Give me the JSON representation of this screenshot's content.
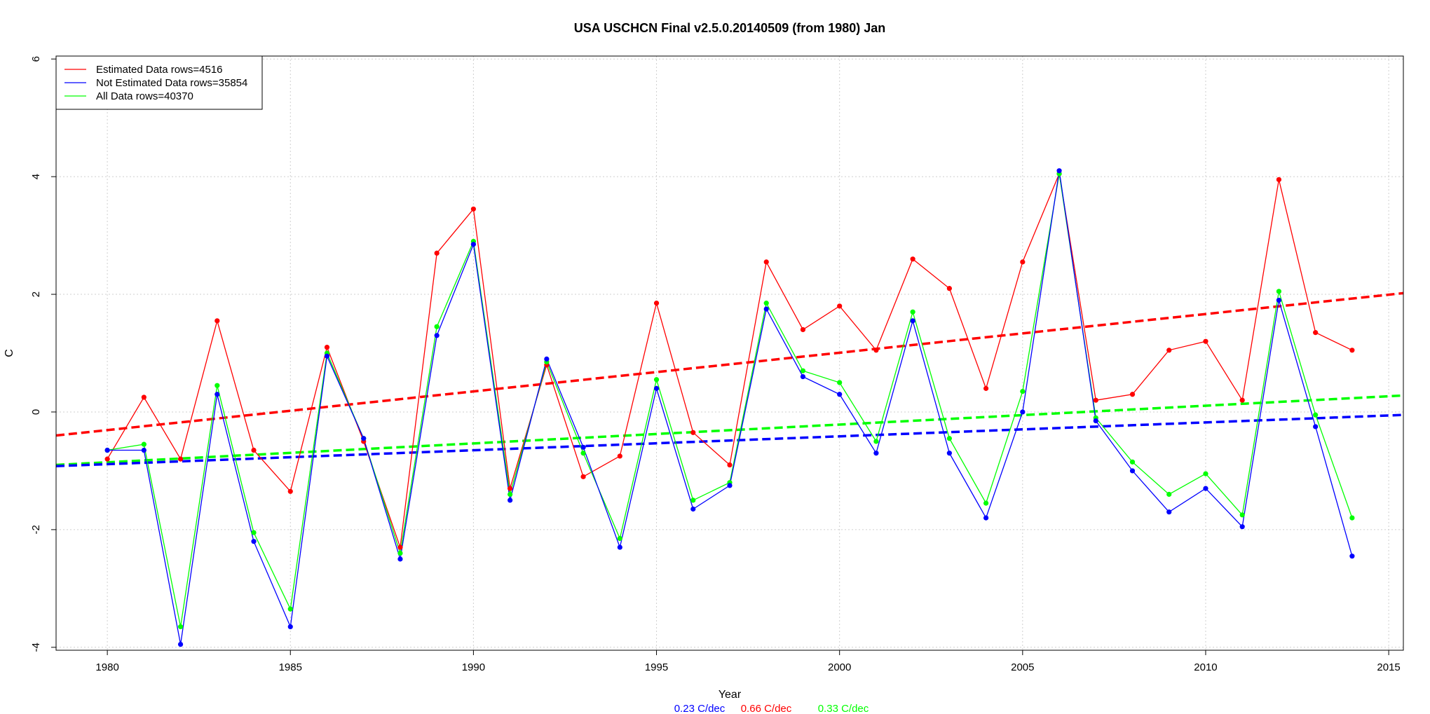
{
  "chart_data": {
    "type": "line",
    "title": "USA USCHCN Final v2.5.0.20140509 (from 1980) Jan",
    "xlabel": "Year",
    "ylabel": "C",
    "xlim": [
      1978.6,
      2015.4
    ],
    "ylim": [
      -4.05,
      6.05
    ],
    "x_ticks": [
      1980,
      1985,
      1990,
      1995,
      2000,
      2005,
      2010,
      2015
    ],
    "y_ticks": [
      -4,
      -2,
      0,
      2,
      4,
      6
    ],
    "grid": true,
    "legend_position": "top-left",
    "x": [
      1980,
      1981,
      1982,
      1983,
      1984,
      1985,
      1986,
      1987,
      1988,
      1989,
      1990,
      1991,
      1992,
      1993,
      1994,
      1995,
      1996,
      1997,
      1998,
      1999,
      2000,
      2001,
      2002,
      2003,
      2004,
      2005,
      2006,
      2007,
      2008,
      2009,
      2010,
      2011,
      2012,
      2013,
      2014
    ],
    "series": [
      {
        "name": "Estimated Data rows=4516",
        "color": "#ff0000",
        "values": [
          -0.8,
          0.25,
          -0.8,
          1.55,
          -0.65,
          -1.35,
          1.1,
          -0.5,
          -2.3,
          2.7,
          3.45,
          -1.3,
          0.8,
          -1.1,
          -0.75,
          1.85,
          -0.35,
          -0.9,
          2.55,
          1.4,
          1.8,
          1.05,
          2.6,
          2.1,
          0.4,
          2.55,
          4.05,
          0.2,
          0.3,
          1.05,
          1.2,
          0.2,
          3.95,
          1.35,
          1.05
        ]
      },
      {
        "name": "Not Estimated Data rows=35854",
        "color": "#0000ff",
        "values": [
          -0.65,
          -0.65,
          -3.95,
          0.3,
          -2.2,
          -3.65,
          0.95,
          -0.45,
          -2.5,
          1.3,
          2.85,
          -1.5,
          0.9,
          -0.6,
          -2.3,
          0.4,
          -1.65,
          -1.25,
          1.75,
          0.6,
          0.3,
          -0.7,
          1.55,
          -0.7,
          -1.8,
          0.0,
          4.1,
          -0.15,
          -1.0,
          -1.7,
          -1.3,
          -1.95,
          1.9,
          -0.25,
          -2.45
        ]
      },
      {
        "name": "All Data rows=40370",
        "color": "#00ff00",
        "values": [
          -0.65,
          -0.55,
          -3.65,
          0.45,
          -2.05,
          -3.35,
          1.0,
          -0.45,
          -2.4,
          1.45,
          2.9,
          -1.4,
          0.85,
          -0.7,
          -2.15,
          0.55,
          -1.5,
          -1.2,
          1.85,
          0.7,
          0.5,
          -0.5,
          1.7,
          -0.45,
          -1.55,
          0.35,
          4.05,
          -0.1,
          -0.85,
          -1.4,
          -1.05,
          -1.75,
          2.05,
          -0.05,
          -1.8
        ]
      }
    ],
    "trendlines": [
      {
        "name": "Estimated trend",
        "color": "#ff0000",
        "start": [
          1978.6,
          -0.4
        ],
        "end": [
          2015.4,
          2.02
        ]
      },
      {
        "name": "All trend",
        "color": "#00ff00",
        "start": [
          1978.6,
          -0.9
        ],
        "end": [
          2015.4,
          0.28
        ]
      },
      {
        "name": "Not Estimated trend",
        "color": "#0000ff",
        "start": [
          1978.6,
          -0.92
        ],
        "end": [
          2015.4,
          -0.05
        ]
      }
    ],
    "footer": [
      {
        "text": "0.23 C/dec",
        "color": "#0000ff"
      },
      {
        "text": "0.66 C/dec",
        "color": "#ff0000"
      },
      {
        "text": "0.33 C/dec",
        "color": "#00ff00"
      }
    ]
  }
}
